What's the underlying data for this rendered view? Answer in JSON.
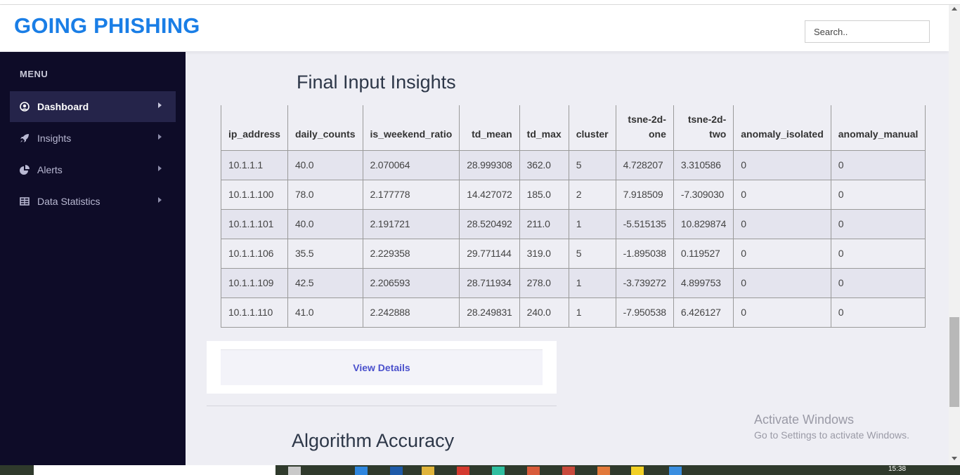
{
  "header": {
    "brand": "GOING PHISHING",
    "search_placeholder": "Search.."
  },
  "sidebar": {
    "menu_title": "MENU",
    "items": [
      {
        "label": "Dashboard",
        "icon": "dashboard-icon",
        "active": true
      },
      {
        "label": "Insights",
        "icon": "rocket-icon",
        "active": false
      },
      {
        "label": "Alerts",
        "icon": "pie-chart-icon",
        "active": false
      },
      {
        "label": "Data Statistics",
        "icon": "table-icon",
        "active": false
      }
    ]
  },
  "main": {
    "section_title": "Final Input Insights",
    "table": {
      "headers": [
        "ip_address",
        "daily_counts",
        "is_weekend_ratio",
        "td_mean",
        "td_max",
        "cluster",
        "tsne-2d-one",
        "tsne-2d-two",
        "anomaly_isolated",
        "anomaly_manual"
      ],
      "rows": [
        [
          "10.1.1.1",
          "40.0",
          "2.070064",
          "28.999308",
          "362.0",
          "5",
          "4.728207",
          "3.310586",
          "0",
          "0"
        ],
        [
          "10.1.1.100",
          "78.0",
          "2.177778",
          "14.427072",
          "185.0",
          "2",
          "7.918509",
          "-7.309030",
          "0",
          "0"
        ],
        [
          "10.1.1.101",
          "40.0",
          "2.191721",
          "28.520492",
          "211.0",
          "1",
          "-5.515135",
          "10.829874",
          "0",
          "0"
        ],
        [
          "10.1.1.106",
          "35.5",
          "2.229358",
          "29.771144",
          "319.0",
          "5",
          "-1.895038",
          "0.119527",
          "0",
          "0"
        ],
        [
          "10.1.1.109",
          "42.5",
          "2.206593",
          "28.711934",
          "278.0",
          "1",
          "-3.739272",
          "4.899753",
          "0",
          "0"
        ],
        [
          "10.1.1.110",
          "41.0",
          "2.242888",
          "28.249831",
          "240.0",
          "1",
          "-7.950538",
          "6.426127",
          "0",
          "0"
        ]
      ]
    },
    "view_details_label": "View Details",
    "second_section_title": "Algorithm Accuracy"
  },
  "overlay": {
    "activate_title": "Activate Windows",
    "activate_sub": "Go to Settings to activate Windows."
  },
  "taskbar": {
    "clock": "15:38"
  },
  "colors": {
    "brand": "#1a7ee6",
    "sidebar_bg": "#0e0c28",
    "active_item_bg": "#25244a",
    "button_text": "#4a50cc"
  }
}
